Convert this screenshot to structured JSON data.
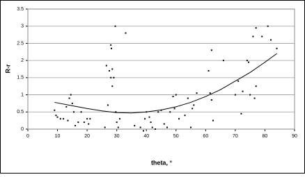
{
  "chart_data": {
    "type": "scatter",
    "x_label": "theta, °",
    "y_label": "R-r",
    "xlim": [
      0,
      90
    ],
    "xticks": [
      0,
      10,
      20,
      30,
      40,
      50,
      60,
      70,
      80,
      90
    ],
    "ylim": [
      0,
      3.5
    ],
    "yticks": [
      0,
      0.5,
      1,
      1.5,
      2,
      2.5,
      3,
      3.5
    ],
    "grid": true,
    "series": [
      {
        "color": "#000000",
        "mode": "markers",
        "x": [
          9,
          9.5,
          10,
          11,
          12,
          13,
          13.5,
          14,
          14.5,
          15,
          15.5,
          16,
          17,
          18,
          19,
          20,
          20.5,
          21,
          26,
          26.5,
          27,
          27.5,
          28,
          28,
          28.2,
          28.5,
          28.5,
          29,
          29.5,
          29.7,
          30,
          30.5,
          31,
          33,
          36,
          38,
          39,
          39.5,
          40,
          41,
          41.5,
          42,
          43,
          44,
          45,
          46,
          47,
          48,
          49,
          49.5,
          50,
          51,
          53,
          54,
          55,
          55.5,
          56,
          57,
          61,
          61.5,
          62,
          62,
          62.5,
          66,
          70,
          71,
          72,
          72.5,
          74,
          74.5,
          75,
          76,
          76.5,
          77,
          77,
          79,
          81,
          82,
          84
        ],
        "values": [
          0.55,
          0.4,
          0.35,
          0.3,
          0.3,
          0.65,
          0.25,
          0.9,
          1.0,
          0.75,
          0.5,
          0.1,
          0.2,
          0.5,
          0.2,
          0.3,
          0.15,
          0.3,
          0.05,
          1.85,
          0.7,
          1.7,
          1.5,
          2.45,
          2.35,
          1.25,
          1.75,
          1.5,
          3.0,
          0.5,
          0.2,
          0.05,
          0.3,
          2.8,
          0.1,
          0.05,
          -0.05,
          0.3,
          0.5,
          0.35,
          0.2,
          0.05,
          0.0,
          0.5,
          0.55,
          0.15,
          0.05,
          0.5,
          0.95,
          0.6,
          1.0,
          0.3,
          0.4,
          0.9,
          0.05,
          0.6,
          0.7,
          1.05,
          1.7,
          1.05,
          2.3,
          0.85,
          0.25,
          2.0,
          1.0,
          1.4,
          0.45,
          1.1,
          2.0,
          1.95,
          1.0,
          2.7,
          0.9,
          2.95,
          1.25,
          2.7,
          3.0,
          2.6,
          2.35
        ]
      },
      {
        "color": "#000000",
        "mode": "line",
        "x": [
          9,
          15,
          20,
          25,
          30,
          35,
          40,
          45,
          50,
          55,
          60,
          65,
          70,
          75,
          80,
          84
        ],
        "values": [
          0.78,
          0.68,
          0.6,
          0.53,
          0.48,
          0.47,
          0.5,
          0.56,
          0.65,
          0.78,
          0.95,
          1.15,
          1.4,
          1.65,
          1.95,
          2.2
        ]
      }
    ]
  }
}
